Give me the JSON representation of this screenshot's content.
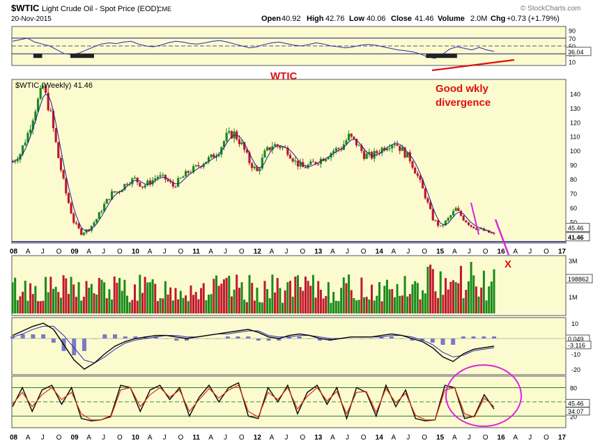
{
  "header": {
    "symbol": "$WTIC",
    "name": "Light Crude Oil - Spot Price (EOD)",
    "exchange": "CME",
    "date": "20-Nov-2015",
    "copyright": "© StockCharts.com",
    "open_label": "Open",
    "open": "40.92",
    "high_label": "High",
    "high": "42.76",
    "low_label": "Low",
    "low": "40.06",
    "close_label": "Close",
    "close": "41.46",
    "volume_label": "Volume",
    "volume": "2.0M",
    "chg_label": "Chg",
    "chg": "+0.73 (+1.79%)"
  },
  "annotations": {
    "wtic": "WTIC",
    "divergence_line1": "Good wkly",
    "divergence_line2": "divergence",
    "x_mark": "X"
  },
  "colors": {
    "panel_bg": "#fbfbcf",
    "up": "#1a8a1a",
    "down": "#c0182b",
    "ma": "#1a1aa0",
    "rsi": "#2a2ab0",
    "red_note": "#e01010",
    "magenta": "#e020e0",
    "hline": "#1a1a9a",
    "sto_fast": "#111111",
    "sto_slow": "#e03010"
  },
  "chart_data": [
    {
      "type": "line",
      "panel": "rsi",
      "ylim": [
        0,
        100
      ],
      "yticks": [
        "90",
        "70",
        "50",
        "30",
        "10"
      ],
      "badge": "36.04",
      "values": [
        62,
        66,
        70,
        60,
        55,
        50,
        40,
        30,
        28,
        32,
        40,
        48,
        55,
        58,
        56,
        60,
        62,
        55,
        50,
        48,
        52,
        58,
        62,
        60,
        56,
        55,
        58,
        62,
        64,
        60,
        55,
        50,
        45,
        48,
        54,
        58,
        60,
        56,
        52,
        50,
        54,
        58,
        55,
        50,
        48,
        45,
        48,
        52,
        54,
        52,
        48,
        44,
        40,
        38,
        35,
        30,
        22,
        18,
        28,
        42,
        48,
        44,
        40,
        46,
        40,
        36
      ]
    },
    {
      "type": "bar",
      "panel": "price",
      "title": "$WTIC (Weekly) 41.46",
      "ylim": [
        35,
        150
      ],
      "yticks": [
        "140",
        "130",
        "120",
        "110",
        "100",
        "90",
        "80",
        "70",
        "60",
        "50"
      ],
      "badges": [
        "45.46",
        "41.46"
      ],
      "x_ticks": [
        "08",
        "A",
        "J",
        "O",
        "09",
        "A",
        "J",
        "O",
        "10",
        "A",
        "J",
        "O",
        "11",
        "A",
        "J",
        "O",
        "12",
        "A",
        "J",
        "O",
        "13",
        "A",
        "J",
        "O",
        "14",
        "A",
        "J",
        "O",
        "15",
        "A",
        "J",
        "O",
        "16",
        "A",
        "J",
        "O",
        "17"
      ],
      "close": [
        92,
        98,
        112,
        130,
        145,
        125,
        95,
        70,
        50,
        42,
        45,
        52,
        62,
        70,
        72,
        78,
        80,
        75,
        78,
        82,
        80,
        75,
        80,
        85,
        88,
        92,
        95,
        100,
        110,
        112,
        104,
        92,
        85,
        98,
        104,
        103,
        100,
        92,
        88,
        90,
        93,
        96,
        100,
        102,
        110,
        105,
        97,
        96,
        100,
        104,
        106,
        100,
        94,
        82,
        68,
        52,
        46,
        52,
        59,
        52,
        47,
        45,
        43,
        41
      ]
    },
    {
      "type": "bar",
      "panel": "volume",
      "yticks": [
        "3M",
        "1M"
      ],
      "badge": "198862"
    },
    {
      "type": "line",
      "panel": "macd",
      "yticks": [
        "10",
        "0",
        "-10",
        "-20"
      ],
      "badges": [
        "0.049",
        "-3.116"
      ],
      "macd": [
        2,
        5,
        8,
        10,
        6,
        -4,
        -14,
        -20,
        -16,
        -10,
        -5,
        -2,
        0,
        1,
        2,
        2,
        1,
        0,
        1,
        2,
        3,
        4,
        5,
        6,
        4,
        1,
        0,
        2,
        3,
        2,
        0,
        -1,
        0,
        1,
        1,
        1,
        2,
        3,
        2,
        0,
        -2,
        -6,
        -12,
        -15,
        -10,
        -7,
        -6,
        -5
      ],
      "signal": [
        1,
        3,
        6,
        8,
        8,
        2,
        -6,
        -14,
        -16,
        -12,
        -7,
        -3,
        -1,
        0,
        1,
        2,
        2,
        1,
        1,
        2,
        3,
        3,
        4,
        5,
        5,
        2,
        1,
        1,
        2,
        2,
        1,
        0,
        0,
        1,
        1,
        1,
        1,
        2,
        2,
        1,
        -1,
        -4,
        -9,
        -12,
        -11,
        -8,
        -7,
        -6
      ]
    },
    {
      "type": "line",
      "panel": "stochastic",
      "yticks": [
        "80",
        "20"
      ],
      "badges": [
        "45.46",
        "34.07"
      ],
      "fast": [
        40,
        80,
        30,
        75,
        85,
        45,
        80,
        15,
        10,
        12,
        20,
        85,
        80,
        30,
        75,
        85,
        55,
        80,
        20,
        60,
        85,
        50,
        80,
        90,
        20,
        15,
        80,
        50,
        85,
        25,
        70,
        85,
        45,
        80,
        15,
        80,
        70,
        20,
        85,
        40,
        75,
        15,
        10,
        12,
        85,
        80,
        15,
        20,
        65,
        35
      ],
      "slow": [
        45,
        70,
        40,
        65,
        80,
        55,
        70,
        25,
        12,
        12,
        18,
        75,
        80,
        40,
        65,
        80,
        60,
        75,
        30,
        55,
        78,
        58,
        75,
        85,
        30,
        18,
        70,
        55,
        80,
        35,
        62,
        80,
        52,
        72,
        25,
        70,
        72,
        28,
        78,
        48,
        68,
        22,
        12,
        12,
        75,
        80,
        25,
        18,
        58,
        40
      ]
    }
  ]
}
